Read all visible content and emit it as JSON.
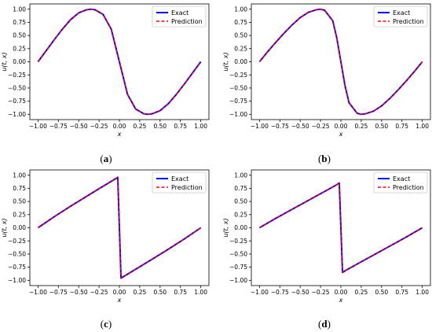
{
  "figure": {
    "captions": [
      "(a)",
      "(b)",
      "(c)",
      "(d)"
    ],
    "colors": {
      "exact": "#0000ff",
      "prediction": "#ff0000"
    }
  },
  "chart_data": [
    {
      "type": "line",
      "panel": "a",
      "xlabel": "x",
      "ylabel": "u(t, x)",
      "xlim": [
        -1.0,
        1.0
      ],
      "ylim": [
        -1.0,
        1.0
      ],
      "xticks": [
        "-1.00",
        "-0.75",
        "-0.50",
        "-0.25",
        "0.00",
        "0.25",
        "0.50",
        "0.75",
        "1.00"
      ],
      "yticks": [
        "1.00",
        "0.75",
        "0.50",
        "0.25",
        "0.00",
        "-0.25",
        "-0.50",
        "-0.75",
        "-1.00"
      ],
      "legend": "top-right",
      "series": [
        {
          "name": "Exact",
          "x": [
            -1.0,
            -0.9,
            -0.8,
            -0.7,
            -0.6,
            -0.5,
            -0.4,
            -0.35,
            -0.3,
            -0.2,
            -0.1,
            0.0,
            0.1,
            0.2,
            0.3,
            0.35,
            0.4,
            0.5,
            0.6,
            0.7,
            0.8,
            0.9,
            1.0
          ],
          "y": [
            0.0,
            0.21,
            0.42,
            0.62,
            0.8,
            0.93,
            0.99,
            1.0,
            0.99,
            0.9,
            0.62,
            0.0,
            -0.62,
            -0.9,
            -0.99,
            -1.0,
            -0.99,
            -0.93,
            -0.8,
            -0.62,
            -0.42,
            -0.21,
            0.0
          ]
        },
        {
          "name": "Prediction",
          "x": [
            -1.0,
            -0.9,
            -0.8,
            -0.7,
            -0.6,
            -0.5,
            -0.4,
            -0.35,
            -0.3,
            -0.2,
            -0.1,
            0.0,
            0.1,
            0.2,
            0.3,
            0.35,
            0.4,
            0.5,
            0.6,
            0.7,
            0.8,
            0.9,
            1.0
          ],
          "y": [
            0.0,
            0.21,
            0.42,
            0.62,
            0.8,
            0.93,
            0.99,
            1.0,
            0.99,
            0.9,
            0.62,
            0.0,
            -0.62,
            -0.9,
            -0.99,
            -1.0,
            -0.99,
            -0.93,
            -0.8,
            -0.62,
            -0.42,
            -0.21,
            0.0
          ]
        }
      ]
    },
    {
      "type": "line",
      "panel": "b",
      "xlabel": "x",
      "ylabel": "u(t, x)",
      "xlim": [
        -1.0,
        1.0
      ],
      "ylim": [
        -1.0,
        1.0
      ],
      "xticks": [
        "-1.00",
        "-0.75",
        "-0.50",
        "-0.25",
        "0.00",
        "0.25",
        "0.50",
        "0.75",
        "1.00"
      ],
      "yticks": [
        "1.00",
        "0.75",
        "0.50",
        "0.25",
        "0.00",
        "-0.25",
        "-0.50",
        "-0.75",
        "-1.00"
      ],
      "legend": "top-right",
      "series": [
        {
          "name": "Exact",
          "x": [
            -1.0,
            -0.9,
            -0.8,
            -0.7,
            -0.6,
            -0.5,
            -0.4,
            -0.3,
            -0.25,
            -0.2,
            -0.1,
            -0.05,
            0.0,
            0.05,
            0.1,
            0.2,
            0.25,
            0.3,
            0.4,
            0.5,
            0.6,
            0.7,
            0.8,
            0.9,
            1.0
          ],
          "y": [
            0.0,
            0.19,
            0.37,
            0.54,
            0.7,
            0.84,
            0.94,
            0.99,
            1.0,
            0.98,
            0.78,
            0.45,
            0.0,
            -0.45,
            -0.78,
            -0.98,
            -1.0,
            -0.99,
            -0.94,
            -0.84,
            -0.7,
            -0.54,
            -0.37,
            -0.19,
            0.0
          ]
        },
        {
          "name": "Prediction",
          "x": [
            -1.0,
            -0.9,
            -0.8,
            -0.7,
            -0.6,
            -0.5,
            -0.4,
            -0.3,
            -0.25,
            -0.2,
            -0.1,
            -0.05,
            0.0,
            0.05,
            0.1,
            0.2,
            0.25,
            0.3,
            0.4,
            0.5,
            0.6,
            0.7,
            0.8,
            0.9,
            1.0
          ],
          "y": [
            0.0,
            0.19,
            0.37,
            0.54,
            0.7,
            0.84,
            0.94,
            0.99,
            1.0,
            0.98,
            0.78,
            0.45,
            0.0,
            -0.45,
            -0.78,
            -0.98,
            -1.0,
            -0.99,
            -0.94,
            -0.84,
            -0.7,
            -0.54,
            -0.37,
            -0.19,
            0.0
          ]
        }
      ]
    },
    {
      "type": "line",
      "panel": "c",
      "xlabel": "x",
      "ylabel": "u(t, x)",
      "xlim": [
        -1.0,
        1.0
      ],
      "ylim": [
        -1.0,
        1.0
      ],
      "xticks": [
        "-1.00",
        "-0.75",
        "-0.50",
        "-0.25",
        "0.00",
        "0.25",
        "0.50",
        "0.75",
        "1.00"
      ],
      "yticks": [
        "1.00",
        "0.75",
        "0.50",
        "0.25",
        "0.00",
        "-0.25",
        "-0.50",
        "-0.75",
        "-1.00"
      ],
      "legend": "top-right",
      "series": [
        {
          "name": "Exact",
          "x": [
            -1.0,
            -0.8,
            -0.6,
            -0.4,
            -0.2,
            -0.05,
            -0.02,
            0.0,
            0.02,
            0.05,
            0.2,
            0.4,
            0.6,
            0.8,
            1.0
          ],
          "y": [
            0.0,
            0.21,
            0.41,
            0.6,
            0.79,
            0.93,
            0.96,
            0.0,
            -0.96,
            -0.93,
            -0.79,
            -0.6,
            -0.41,
            -0.21,
            0.0
          ]
        },
        {
          "name": "Prediction",
          "x": [
            -1.0,
            -0.8,
            -0.6,
            -0.4,
            -0.2,
            -0.05,
            -0.02,
            0.0,
            0.02,
            0.05,
            0.2,
            0.4,
            0.6,
            0.8,
            1.0
          ],
          "y": [
            0.0,
            0.21,
            0.41,
            0.6,
            0.79,
            0.93,
            0.96,
            0.0,
            -0.96,
            -0.93,
            -0.79,
            -0.6,
            -0.41,
            -0.21,
            0.0
          ]
        }
      ]
    },
    {
      "type": "line",
      "panel": "d",
      "xlabel": "x",
      "ylabel": "u(t, x)",
      "xlim": [
        -1.0,
        1.0
      ],
      "ylim": [
        -1.0,
        1.0
      ],
      "xticks": [
        "-1.00",
        "-0.75",
        "-0.50",
        "-0.25",
        "0.00",
        "0.25",
        "0.50",
        "0.75",
        "1.00"
      ],
      "yticks": [
        "1.00",
        "0.75",
        "0.50",
        "0.25",
        "0.00",
        "-0.25",
        "-0.50",
        "-0.75",
        "-1.00"
      ],
      "legend": "top-right",
      "series": [
        {
          "name": "Exact",
          "x": [
            -1.0,
            -0.8,
            -0.6,
            -0.4,
            -0.2,
            -0.05,
            -0.02,
            0.0,
            0.02,
            0.05,
            0.2,
            0.4,
            0.6,
            0.8,
            1.0
          ],
          "y": [
            0.0,
            0.18,
            0.35,
            0.52,
            0.69,
            0.82,
            0.85,
            0.0,
            -0.85,
            -0.82,
            -0.69,
            -0.52,
            -0.35,
            -0.18,
            0.0
          ]
        },
        {
          "name": "Prediction",
          "x": [
            -1.0,
            -0.8,
            -0.6,
            -0.4,
            -0.2,
            -0.05,
            -0.02,
            0.0,
            0.02,
            0.05,
            0.2,
            0.4,
            0.6,
            0.8,
            1.0
          ],
          "y": [
            0.0,
            0.18,
            0.35,
            0.52,
            0.69,
            0.82,
            0.85,
            0.0,
            -0.85,
            -0.82,
            -0.69,
            -0.52,
            -0.35,
            -0.18,
            0.0
          ]
        }
      ]
    }
  ]
}
